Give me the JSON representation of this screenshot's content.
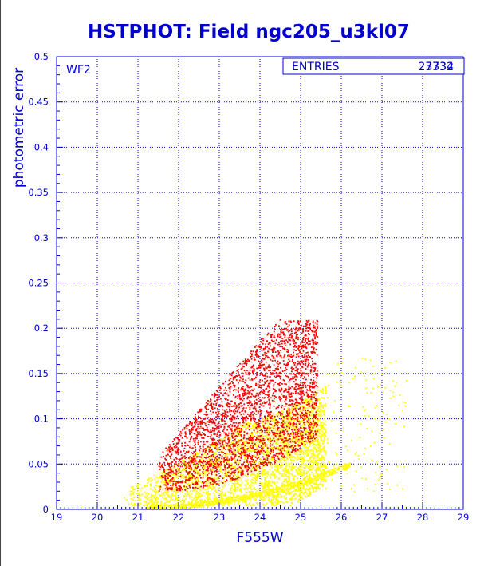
{
  "chart_data": {
    "type": "scatter",
    "title": "HSTPHOT: Field ngc205_u3kl07",
    "xlabel": "F555W",
    "ylabel": "photometric error",
    "xlim": [
      19,
      29
    ],
    "ylim": [
      0,
      0.5
    ],
    "x_ticks": [
      "19",
      "20",
      "21",
      "22",
      "23",
      "24",
      "25",
      "26",
      "27",
      "28",
      "29"
    ],
    "y_ticks": [
      "0",
      "0.05",
      "0.1",
      "0.15",
      "0.2",
      "0.25",
      "0.3",
      "0.35",
      "0.4",
      "0.45",
      "0.5"
    ],
    "grid": true,
    "panel_label": "WF2",
    "stats_box": {
      "label": "ENTRIES",
      "values": [
        "27732",
        "3334"
      ],
      "colors": [
        "#ffff00",
        "#ff0000"
      ]
    },
    "series": [
      {
        "color": "#ffff00",
        "count": 27732,
        "distribution": {
          "main_locus": {
            "x_min": 20.6,
            "x_max": 25.6,
            "err_at_x0": 0.004,
            "x0": 20.6,
            "err_growth": 0.55,
            "spread_low": 0.02,
            "spread_high": 0.11
          },
          "lower_sequence": {
            "x_min": 21.2,
            "x_max": 26.2,
            "err_min": 0.003,
            "err_max": 0.05
          },
          "faint_tail": {
            "x_min": 25.6,
            "x_max": 27.6,
            "err_min": 0.02,
            "err_max": 0.17
          }
        }
      },
      {
        "color": "#ff0000",
        "count": 3334,
        "distribution": {
          "main_locus": {
            "x_min": 21.5,
            "x_max": 25.4,
            "err_min": 0.02,
            "err_max": 0.21
          }
        }
      }
    ]
  }
}
